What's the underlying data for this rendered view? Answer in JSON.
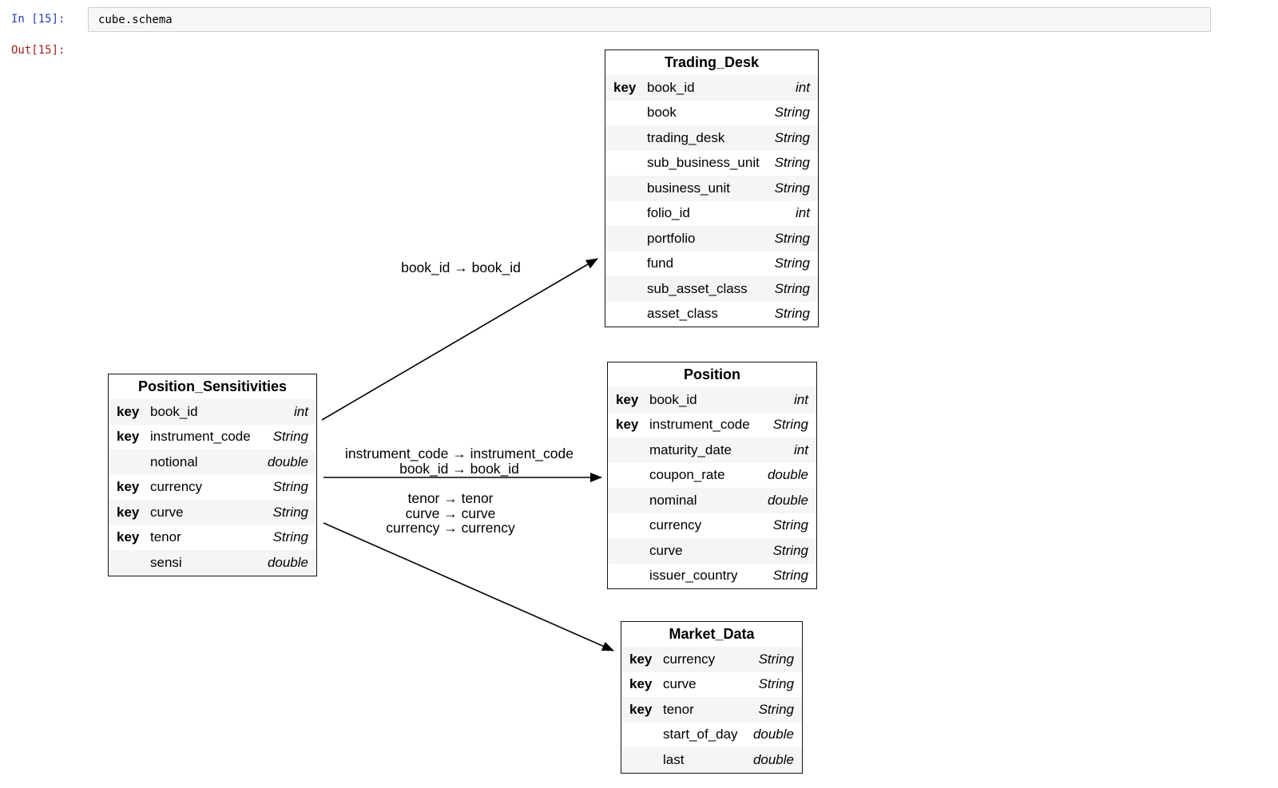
{
  "notebook": {
    "in_prompt": "In [15]:",
    "input_code": "cube.schema",
    "out_prompt": "Out[15]:"
  },
  "colors": {
    "in_prompt": "#2e3cb0",
    "out_prompt": "#9e1d1d",
    "row_stripe": "#f5f5f5",
    "table_border": "#141414",
    "arrow": "#000000"
  },
  "schema": {
    "tables": [
      {
        "title": "Trading_Desk",
        "fields": [
          {
            "key": "key",
            "name": "book_id",
            "type": "int"
          },
          {
            "key": "",
            "name": "book",
            "type": "String"
          },
          {
            "key": "",
            "name": "trading_desk",
            "type": "String"
          },
          {
            "key": "",
            "name": "sub_business_unit",
            "type": "String"
          },
          {
            "key": "",
            "name": "business_unit",
            "type": "String"
          },
          {
            "key": "",
            "name": "folio_id",
            "type": "int"
          },
          {
            "key": "",
            "name": "portfolio",
            "type": "String"
          },
          {
            "key": "",
            "name": "fund",
            "type": "String"
          },
          {
            "key": "",
            "name": "sub_asset_class",
            "type": "String"
          },
          {
            "key": "",
            "name": "asset_class",
            "type": "String"
          }
        ]
      },
      {
        "title": "Position_Sensitivities",
        "fields": [
          {
            "key": "key",
            "name": "book_id",
            "type": "int"
          },
          {
            "key": "key",
            "name": "instrument_code",
            "type": "String"
          },
          {
            "key": "",
            "name": "notional",
            "type": "double"
          },
          {
            "key": "key",
            "name": "currency",
            "type": "String"
          },
          {
            "key": "key",
            "name": "curve",
            "type": "String"
          },
          {
            "key": "key",
            "name": "tenor",
            "type": "String"
          },
          {
            "key": "",
            "name": "sensi",
            "type": "double"
          }
        ]
      },
      {
        "title": "Position",
        "fields": [
          {
            "key": "key",
            "name": "book_id",
            "type": "int"
          },
          {
            "key": "key",
            "name": "instrument_code",
            "type": "String"
          },
          {
            "key": "",
            "name": "maturity_date",
            "type": "int"
          },
          {
            "key": "",
            "name": "coupon_rate",
            "type": "double"
          },
          {
            "key": "",
            "name": "nominal",
            "type": "double"
          },
          {
            "key": "",
            "name": "currency",
            "type": "String"
          },
          {
            "key": "",
            "name": "curve",
            "type": "String"
          },
          {
            "key": "",
            "name": "issuer_country",
            "type": "String"
          }
        ]
      },
      {
        "title": "Market_Data",
        "fields": [
          {
            "key": "key",
            "name": "currency",
            "type": "String"
          },
          {
            "key": "key",
            "name": "curve",
            "type": "String"
          },
          {
            "key": "key",
            "name": "tenor",
            "type": "String"
          },
          {
            "key": "",
            "name": "start_of_day",
            "type": "double"
          },
          {
            "key": "",
            "name": "last",
            "type": "double"
          }
        ]
      }
    ],
    "links": [
      {
        "from": "Position_Sensitivities",
        "to": "Trading_Desk",
        "labels": [
          "book_id → book_id"
        ]
      },
      {
        "from": "Position_Sensitivities",
        "to": "Position",
        "labels": [
          "instrument_code → instrument_code",
          "book_id → book_id"
        ]
      },
      {
        "from": "Position_Sensitivities",
        "to": "Market_Data",
        "labels": [
          "tenor → tenor",
          "curve → curve",
          "currency → currency"
        ]
      }
    ]
  }
}
